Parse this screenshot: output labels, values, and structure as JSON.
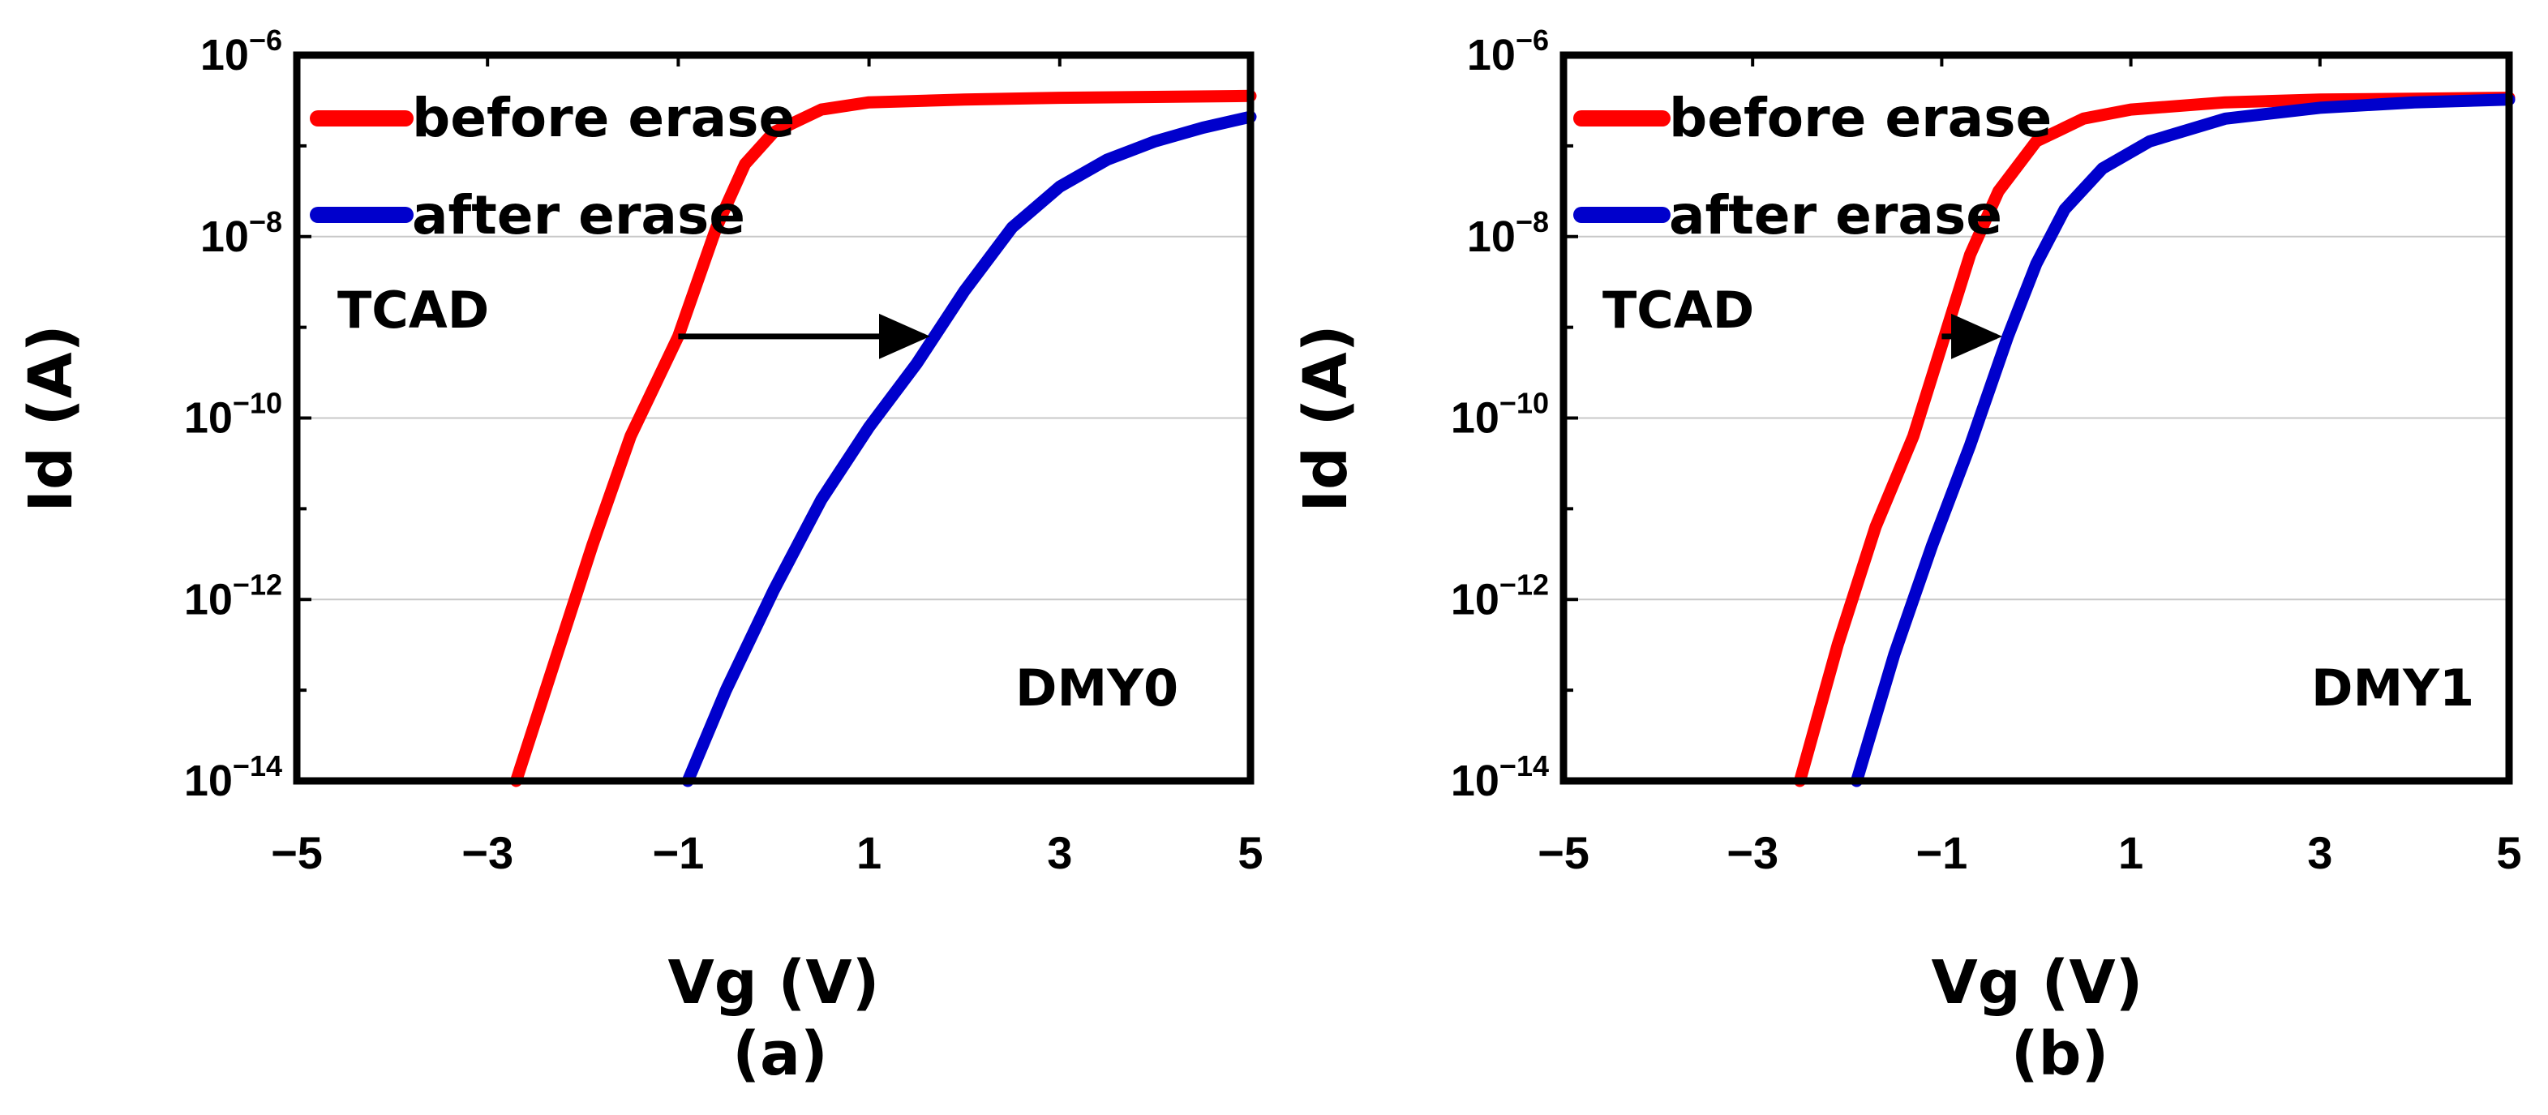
{
  "chart_data": [
    {
      "id": "a",
      "type": "line",
      "caption": "(a)",
      "xlabel": "Vg (V)",
      "ylabel": "Id (A)",
      "xlim": [
        -5,
        5
      ],
      "ylim_log10": [
        -14,
        -6
      ],
      "xticks": [
        -5,
        -3,
        -1,
        1,
        3,
        5
      ],
      "xtick_labels": [
        "−5",
        "−3",
        "−1",
        "1",
        "3",
        "5"
      ],
      "yticks_log10": [
        -14,
        -12,
        -10,
        -8,
        -6
      ],
      "ytick_exponents": [
        "−14",
        "−12",
        "−10",
        "−8",
        "−6"
      ],
      "ytick_base": "10",
      "grid": "horizontal",
      "legend_position": "top-left",
      "annotations": {
        "top": "TCAD",
        "bottom": "DMY0"
      },
      "shift_arrow": {
        "from": [
          -1.0,
          -9.1
        ],
        "to": [
          1.7,
          -9.1
        ]
      },
      "series": [
        {
          "name": "before erase",
          "color": "#ff0000",
          "points": [
            [
              -2.7,
              -14.0
            ],
            [
              -2.3,
              -12.7
            ],
            [
              -1.9,
              -11.4
            ],
            [
              -1.5,
              -10.2
            ],
            [
              -1.0,
              -9.1
            ],
            [
              -0.6,
              -7.9
            ],
            [
              -0.3,
              -7.2
            ],
            [
              0.0,
              -6.85
            ],
            [
              0.5,
              -6.6
            ],
            [
              1.0,
              -6.52
            ],
            [
              2.0,
              -6.49
            ],
            [
              3.0,
              -6.47
            ],
            [
              4.0,
              -6.46
            ],
            [
              5.0,
              -6.45
            ]
          ]
        },
        {
          "name": "after erase",
          "color": "#0000cc",
          "points": [
            [
              -0.9,
              -14.0
            ],
            [
              -0.5,
              -13.0
            ],
            [
              0.0,
              -11.9
            ],
            [
              0.5,
              -10.9
            ],
            [
              1.0,
              -10.1
            ],
            [
              1.5,
              -9.4
            ],
            [
              2.0,
              -8.6
            ],
            [
              2.5,
              -7.9
            ],
            [
              3.0,
              -7.45
            ],
            [
              3.5,
              -7.15
            ],
            [
              4.0,
              -6.95
            ],
            [
              4.5,
              -6.8
            ],
            [
              5.0,
              -6.68
            ]
          ]
        }
      ]
    },
    {
      "id": "b",
      "type": "line",
      "caption": "(b)",
      "xlabel": "Vg (V)",
      "ylabel": "Id (A)",
      "xlim": [
        -5,
        5
      ],
      "ylim_log10": [
        -14,
        -6
      ],
      "xticks": [
        -5,
        -3,
        -1,
        1,
        3,
        5
      ],
      "xtick_labels": [
        "−5",
        "−3",
        "−1",
        "1",
        "3",
        "5"
      ],
      "yticks_log10": [
        -14,
        -12,
        -10,
        -8,
        -6
      ],
      "ytick_exponents": [
        "−14",
        "−12",
        "−10",
        "−8",
        "−6"
      ],
      "ytick_base": "10",
      "grid": "horizontal",
      "legend_position": "top-left",
      "annotations": {
        "top": "TCAD",
        "bottom": "DMY1"
      },
      "shift_arrow": {
        "from": [
          -1.0,
          -9.1
        ],
        "to": [
          -0.3,
          -9.1
        ]
      },
      "series": [
        {
          "name": "before erase",
          "color": "#ff0000",
          "points": [
            [
              -2.5,
              -14.0
            ],
            [
              -2.1,
              -12.5
            ],
            [
              -1.7,
              -11.2
            ],
            [
              -1.3,
              -10.2
            ],
            [
              -1.0,
              -9.2
            ],
            [
              -0.7,
              -8.2
            ],
            [
              -0.4,
              -7.5
            ],
            [
              0.0,
              -6.95
            ],
            [
              0.5,
              -6.7
            ],
            [
              1.0,
              -6.6
            ],
            [
              2.0,
              -6.52
            ],
            [
              3.0,
              -6.49
            ],
            [
              4.0,
              -6.48
            ],
            [
              5.0,
              -6.47
            ]
          ]
        },
        {
          "name": "after erase",
          "color": "#0000cc",
          "points": [
            [
              -1.9,
              -14.0
            ],
            [
              -1.5,
              -12.6
            ],
            [
              -1.1,
              -11.4
            ],
            [
              -0.7,
              -10.3
            ],
            [
              -0.3,
              -9.1
            ],
            [
              0.0,
              -8.3
            ],
            [
              0.3,
              -7.7
            ],
            [
              0.7,
              -7.25
            ],
            [
              1.2,
              -6.95
            ],
            [
              2.0,
              -6.7
            ],
            [
              3.0,
              -6.58
            ],
            [
              4.0,
              -6.52
            ],
            [
              5.0,
              -6.49
            ]
          ]
        }
      ]
    }
  ]
}
